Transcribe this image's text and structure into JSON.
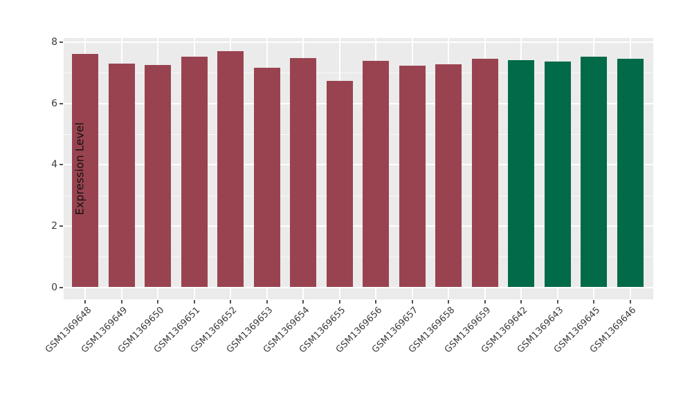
{
  "chart_data": {
    "type": "bar",
    "title": "",
    "xlabel": "",
    "ylabel": "Expression Level",
    "categories": [
      "GSM1369648",
      "GSM1369649",
      "GSM1369650",
      "GSM1369651",
      "GSM1369652",
      "GSM1369653",
      "GSM1369654",
      "GSM1369655",
      "GSM1369656",
      "GSM1369657",
      "GSM1369658",
      "GSM1369659",
      "GSM1369642",
      "GSM1369643",
      "GSM1369645",
      "GSM1369646"
    ],
    "values": [
      7.62,
      7.3,
      7.26,
      7.53,
      7.7,
      7.17,
      7.48,
      6.73,
      7.4,
      7.23,
      7.29,
      7.46,
      7.42,
      7.38,
      7.52,
      7.45
    ],
    "bar_colors": [
      "#994350",
      "#994350",
      "#994350",
      "#994350",
      "#994350",
      "#994350",
      "#994350",
      "#994350",
      "#994350",
      "#994350",
      "#994350",
      "#994350",
      "#016A48",
      "#016A48",
      "#016A48",
      "#016A48"
    ],
    "groups": [
      {
        "name": "red-group",
        "color": "#994350",
        "count": 12
      },
      {
        "name": "green-group",
        "color": "#016A48",
        "count": 4
      }
    ],
    "yticks": [
      0,
      2,
      4,
      6,
      8
    ],
    "ytick_labels": [
      "0",
      "2",
      "4",
      "6",
      "8"
    ],
    "yticks_minor": [
      1,
      3,
      5,
      7
    ],
    "ylim": [
      -0.4,
      8.2
    ],
    "grid": true,
    "legend": false,
    "style": {
      "figure_bg": "#FFFFFF",
      "panel_bg": "#EBEBEB",
      "grid_major_color": "#FFFFFF",
      "grid_minor_color": "#FFFFFF",
      "tick_color": "#4D4D4D",
      "tick_label_color": "#3A3A3A",
      "axis_title_color": "#111111"
    }
  }
}
